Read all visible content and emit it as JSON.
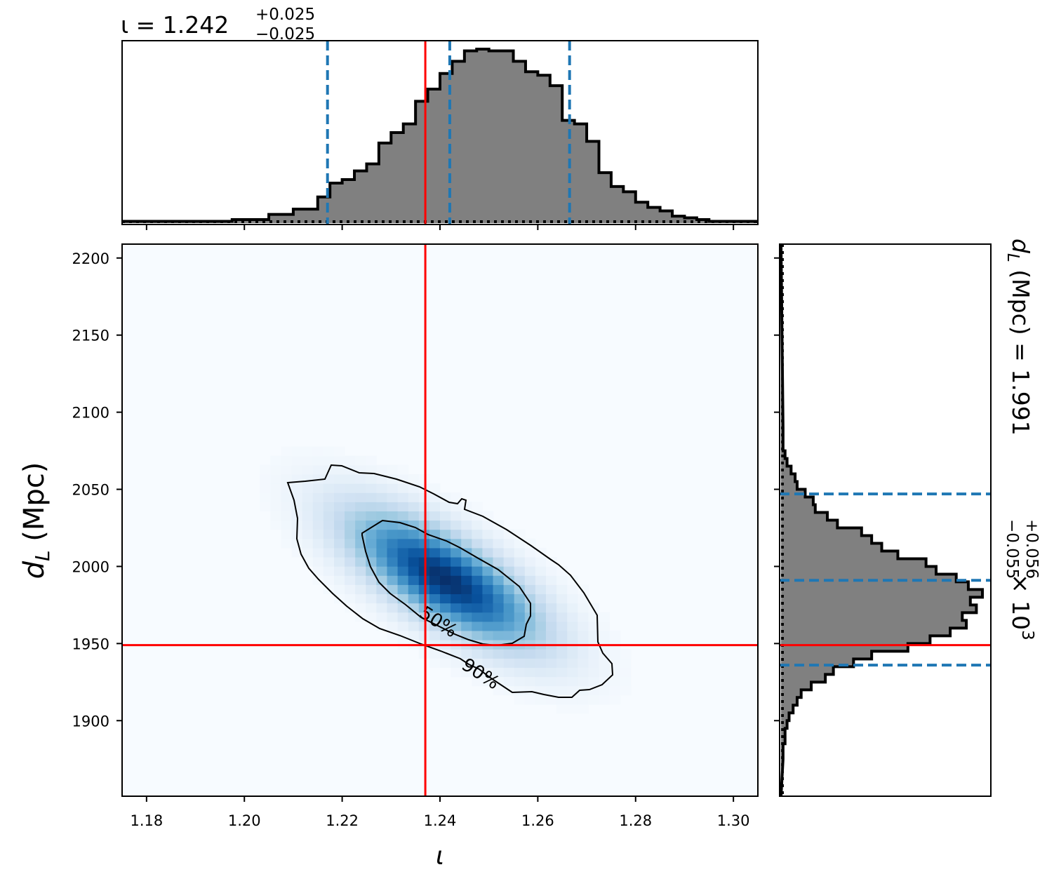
{
  "chart_data": {
    "type": "corner",
    "params": {
      "x": {
        "symbol": "ι",
        "median": 1.242,
        "err_plus": "+0.025",
        "err_minus": "−0.025",
        "title_main": "ι = 1.242",
        "q05": 1.217,
        "q95": 1.2665,
        "truth": 1.237,
        "range": [
          1.175,
          1.305
        ],
        "ticks": [
          1.18,
          1.2,
          1.22,
          1.24,
          1.26,
          1.28,
          1.3
        ],
        "tick_labels": [
          "1.18",
          "1.20",
          "1.22",
          "1.24",
          "1.26",
          "1.28",
          "1.30"
        ],
        "axis_label": "ι"
      },
      "y": {
        "symbol": "dL",
        "median": 1991,
        "err_plus": "+0.056",
        "err_minus": "−0.055",
        "title_main": "d",
        "title_sub": "L",
        "title_rest": " (Mpc) = 1.991",
        "title_scale": " × 10",
        "title_exp": "3",
        "q05": 1936,
        "q95": 2047,
        "truth": 1949,
        "range": [
          1851,
          2209
        ],
        "ticks": [
          1900,
          1950,
          2000,
          2050,
          2100,
          2150,
          2200
        ],
        "tick_labels": [
          "1900",
          "1950",
          "2000",
          "2050",
          "2100",
          "2150",
          "2200"
        ],
        "axis_label_main": "d",
        "axis_label_sub": "L",
        "axis_label_rest": " (Mpc)"
      }
    },
    "hist_x": {
      "bin_edges_start": 1.175,
      "bin_width": 0.0025,
      "counts": [
        0.01,
        0.01,
        0.01,
        0.01,
        0.01,
        0.01,
        0.01,
        0.01,
        0.01,
        0.02,
        0.02,
        0.02,
        0.05,
        0.05,
        0.08,
        0.08,
        0.15,
        0.23,
        0.25,
        0.3,
        0.34,
        0.46,
        0.52,
        0.57,
        0.7,
        0.77,
        0.86,
        0.93,
        0.99,
        1.0,
        0.99,
        0.99,
        0.93,
        0.87,
        0.85,
        0.79,
        0.59,
        0.57,
        0.47,
        0.29,
        0.21,
        0.18,
        0.12,
        0.09,
        0.07,
        0.04,
        0.03,
        0.02,
        0.01,
        0.01,
        0.01,
        0.01
      ]
    },
    "hist_y": {
      "bin_edges_start": 1875,
      "bin_width": 5,
      "counts": [
        0.01,
        0.01,
        0.02,
        0.02,
        0.03,
        0.04,
        0.06,
        0.08,
        0.1,
        0.15,
        0.22,
        0.26,
        0.36,
        0.45,
        0.63,
        0.74,
        0.84,
        0.92,
        0.9,
        0.97,
        0.94,
        1.0,
        0.93,
        0.87,
        0.77,
        0.72,
        0.58,
        0.5,
        0.45,
        0.4,
        0.28,
        0.23,
        0.17,
        0.16,
        0.12,
        0.08,
        0.07,
        0.05,
        0.03,
        0.02,
        0.01,
        0.01,
        0.01
      ]
    },
    "density_2d": {
      "colormap": "Blues",
      "peak": [
        1.241,
        1992
      ],
      "correlation": -0.72,
      "sigma_x": 0.0125,
      "sigma_y": 28,
      "grid_bins": 60
    },
    "contours": [
      {
        "level": "50%",
        "label": "50%"
      },
      {
        "level": "90%",
        "label": "90%"
      }
    ],
    "truth_color": "#ff0000",
    "quantile_color": "#1f77b4",
    "hist_fill": "#808080"
  }
}
